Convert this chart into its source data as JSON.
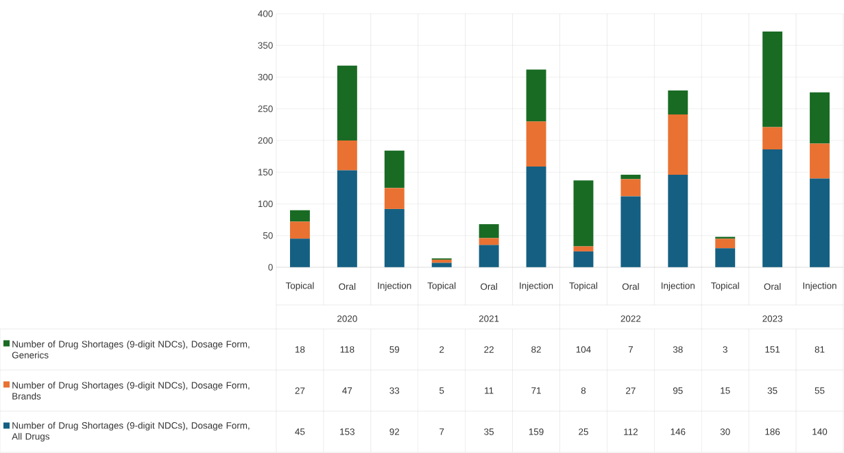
{
  "chart_data": {
    "type": "bar",
    "stacked": true,
    "categories": [
      "Topical",
      "Oral",
      "Injection",
      "Topical",
      "Oral",
      "Injection",
      "Topical",
      "Oral",
      "Injection",
      "Topical",
      "Oral",
      "Injection"
    ],
    "series": [
      {
        "name": "Number of Drug Shortages (9-digit NDCs), Dosage Form, All Drugs",
        "color": "#156082",
        "values": [
          45,
          153,
          92,
          7,
          35,
          159,
          25,
          112,
          146,
          30,
          186,
          140
        ]
      },
      {
        "name": "Number of Drug Shortages (9-digit NDCs), Dosage Form, Brands",
        "color": "#e97132",
        "values": [
          27,
          47,
          33,
          5,
          11,
          71,
          8,
          27,
          95,
          15,
          35,
          55
        ]
      },
      {
        "name": "Number of Drug Shortages (9-digit NDCs), Dosage Form, Generics",
        "color": "#196b24",
        "values": [
          18,
          118,
          59,
          2,
          22,
          82,
          104,
          7,
          38,
          3,
          151,
          81
        ]
      }
    ],
    "annotations": [
      "2020",
      "2021",
      "2022",
      "2023"
    ],
    "ylim": [
      0,
      400
    ],
    "yticks": [
      0,
      50,
      100,
      150,
      200,
      250,
      300,
      350,
      400
    ],
    "grid": "y",
    "legend": "bottom",
    "data_labels": true
  }
}
